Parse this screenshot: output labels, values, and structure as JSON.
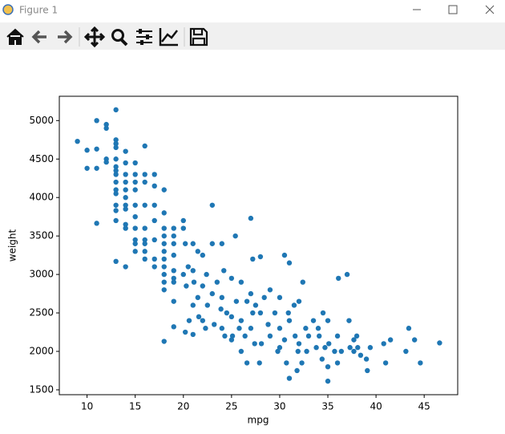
{
  "window_title": "Figure 1",
  "chart_data": {
    "type": "scatter",
    "xlabel": "mpg",
    "ylabel": "weight",
    "color": "#1f77b4",
    "xlim": [
      7.12,
      48.48
    ],
    "ylim": [
      1437,
      5316
    ],
    "xticks": [
      10,
      15,
      20,
      25,
      30,
      35,
      40,
      45
    ],
    "yticks": [
      1500,
      2000,
      2500,
      3000,
      3500,
      4000,
      4500,
      5000
    ],
    "x": [
      9,
      10,
      10,
      11,
      11,
      11,
      11,
      12,
      12,
      12,
      12,
      13,
      13,
      13,
      13,
      13,
      13,
      13,
      13,
      13,
      13,
      13,
      13,
      13,
      13,
      13,
      14,
      14,
      14,
      14,
      14,
      14,
      14,
      14,
      14,
      14,
      14,
      15,
      15,
      15,
      15,
      15,
      15,
      15,
      15,
      15,
      15,
      16,
      16,
      16,
      16,
      16,
      16,
      16,
      16,
      16,
      17,
      17,
      17,
      17,
      17,
      17,
      17,
      18,
      18,
      18,
      18,
      18,
      18,
      18,
      18,
      18,
      18,
      18,
      18,
      19,
      19,
      19,
      19,
      19,
      19,
      19,
      19,
      19,
      20,
      20,
      20.2,
      20.5,
      20,
      20.3,
      20.6,
      20.2,
      21,
      21.5,
      21,
      21.1,
      21.5,
      21,
      21.6,
      21,
      22,
      22.4,
      22,
      22.5,
      22,
      22.3,
      23,
      23,
      23.5,
      23,
      23.9,
      23.2,
      24,
      24.2,
      24,
      24.5,
      24,
      24.3,
      25.4,
      25,
      25.5,
      25,
      25.8,
      25.1,
      25,
      26,
      26.6,
      26,
      26.4,
      26,
      26.6,
      27,
      27.2,
      27,
      27.5,
      27.2,
      27,
      27.4,
      27.9,
      28,
      28.4,
      28,
      28.8,
      28.1,
      29,
      29.5,
      29,
      29.8,
      30.5,
      30,
      30.9,
      30,
      30.5,
      30,
      30.7,
      31,
      31.5,
      31,
      31.6,
      31.9,
      31,
      31.8,
      32.4,
      32,
      32.7,
      32,
      32.8,
      32.3,
      33.5,
      33,
      33.8,
      34.5,
      34,
      34.1,
      34.7,
      34.4,
      35,
      35.1,
      35.7,
      35,
      35,
      36.1,
      36,
      36.4,
      36,
      37,
      37.2,
      37.7,
      37.3,
      38,
      38.1,
      37.7,
      38.4,
      39.1,
      39,
      39.4,
      40.8,
      41,
      41.5,
      43.1,
      43.4,
      44,
      44.6,
      46.6
    ],
    "values": [
      4730,
      4615,
      4380,
      5000,
      4630,
      4380,
      3665,
      4950,
      4900,
      4500,
      4460,
      5140,
      4750,
      4700,
      4650,
      4500,
      4400,
      4350,
      4300,
      4200,
      4100,
      4050,
      3900,
      3830,
      3700,
      3170,
      4600,
      4450,
      4300,
      4200,
      4100,
      4000,
      3900,
      3850,
      3650,
      3600,
      3100,
      4450,
      4300,
      4200,
      4100,
      3900,
      3750,
      3600,
      3450,
      3400,
      3300,
      4670,
      4300,
      4200,
      3900,
      3600,
      3450,
      3300,
      3200,
      3400,
      4300,
      4150,
      3900,
      3700,
      3450,
      3200,
      3100,
      4100,
      3800,
      3600,
      3500,
      3400,
      3300,
      3200,
      3100,
      3000,
      2900,
      2800,
      2130,
      3600,
      3500,
      3400,
      3250,
      3050,
      2950,
      2900,
      2650,
      2320,
      3700,
      3600,
      3400,
      3100,
      3000,
      2850,
      2400,
      2250,
      3400,
      3300,
      3050,
      2900,
      2700,
      2600,
      2450,
      2220,
      3250,
      3000,
      2850,
      2600,
      2400,
      2300,
      3900,
      3400,
      2900,
      2750,
      2550,
      2350,
      3400,
      3050,
      2700,
      2500,
      2300,
      2200,
      3500,
      2950,
      2650,
      2450,
      2300,
      2200,
      2150,
      2900,
      2650,
      2400,
      2200,
      2000,
      1850,
      3730,
      3200,
      2750,
      2600,
      2500,
      2300,
      2100,
      1850,
      3230,
      2700,
      2500,
      2350,
      2100,
      2800,
      2500,
      2200,
      2000,
      3250,
      2700,
      2500,
      2300,
      2150,
      2050,
      1850,
      3150,
      2600,
      2400,
      2200,
      2000,
      1650,
      1750,
      2900,
      2650,
      2300,
      2100,
      2000,
      1850,
      2400,
      2200,
      2050,
      2500,
      2300,
      2200,
      2050,
      1900,
      2400,
      2100,
      2000,
      1800,
      1613,
      2950,
      2200,
      2000,
      1850,
      3000,
      2400,
      2150,
      2050,
      2200,
      2050,
      2000,
      1950,
      1750,
      1900,
      2050,
      2100,
      1850,
      2150,
      2000,
      2300,
      2150,
      1850,
      2110
    ]
  }
}
